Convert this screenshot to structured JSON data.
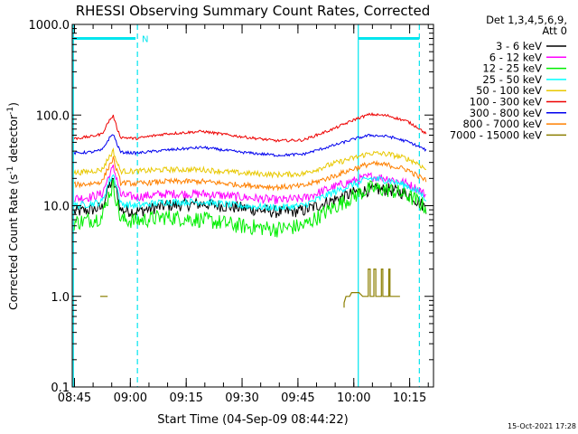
{
  "chart_data": {
    "type": "line",
    "title": "RHESSI Observing Summary Count Rates, Corrected",
    "ylabel_main": "Corrected Count Rate (s",
    "ylabel_sup1": "-1",
    "ylabel_mid": " detector",
    "ylabel_sup2": "-1",
    "ylabel_end": ")",
    "xlabel": "Start Time (04-Sep-09 08:44:22)",
    "footer": "15-Oct-2021 17:28",
    "y_scale": "log",
    "ylim": [
      0.1,
      1000
    ],
    "y_ticks": [
      {
        "value": 1000,
        "label": "1000.0"
      },
      {
        "value": 100,
        "label": "100.0"
      },
      {
        "value": 10,
        "label": "10.0"
      },
      {
        "value": 1,
        "label": "1.0"
      },
      {
        "value": 0.1,
        "label": "0.1"
      }
    ],
    "x_range_minutes": [
      0,
      97
    ],
    "x_ticks": [
      {
        "minute": 0.6,
        "label": "08:45"
      },
      {
        "minute": 15.6,
        "label": "09:00"
      },
      {
        "minute": 30.6,
        "label": "09:15"
      },
      {
        "minute": 45.6,
        "label": "09:30"
      },
      {
        "minute": 60.6,
        "label": "09:45"
      },
      {
        "minute": 75.6,
        "label": "10:00"
      },
      {
        "minute": 90.6,
        "label": "10:15"
      }
    ],
    "legend": {
      "title_line1": "Det 1,3,4,5,6,9,",
      "title_line2": "Att 0",
      "position": "right"
    },
    "markers": {
      "solid_lines_minutes": [
        0.3,
        76.8
      ],
      "dashed_lines_minutes": [
        17.5,
        93.2
      ],
      "night_bars": [
        [
          0.3,
          17.0
        ],
        [
          76.8,
          93.2
        ]
      ],
      "bar_value": 700,
      "saa_label": "N",
      "saa_label_minute": 18.2,
      "colors": {
        "line": "#00e5ee",
        "bar": "#00e5ee"
      }
    },
    "series": [
      {
        "name": "3 - 6 keV",
        "color": "#000000",
        "noise": 0.07,
        "points": [
          [
            0.5,
            8.5
          ],
          [
            5,
            9.0
          ],
          [
            8,
            9.5
          ],
          [
            10,
            17.0
          ],
          [
            11,
            18.0
          ],
          [
            12,
            14.0
          ],
          [
            13,
            9.0
          ],
          [
            17,
            8.6
          ],
          [
            25,
            10.0
          ],
          [
            35,
            10.5
          ],
          [
            45,
            9.5
          ],
          [
            55,
            8.5
          ],
          [
            62,
            8.8
          ],
          [
            70,
            11.5
          ],
          [
            76,
            14.0
          ],
          [
            80,
            15.0
          ],
          [
            85,
            15.0
          ],
          [
            90,
            13.5
          ],
          [
            93,
            11.0
          ],
          [
            95,
            9.5
          ]
        ]
      },
      {
        "name": "6 - 12 keV",
        "color": "#ff00ff",
        "noise": 0.05,
        "points": [
          [
            0.5,
            12.0
          ],
          [
            5,
            12.5
          ],
          [
            8,
            13.5
          ],
          [
            10,
            22.0
          ],
          [
            11,
            26.0
          ],
          [
            12,
            20.0
          ],
          [
            13,
            13.0
          ],
          [
            17,
            12.5
          ],
          [
            25,
            13.5
          ],
          [
            35,
            13.5
          ],
          [
            45,
            12.5
          ],
          [
            55,
            11.5
          ],
          [
            62,
            12.0
          ],
          [
            70,
            16.0
          ],
          [
            76,
            19.0
          ],
          [
            80,
            21.0
          ],
          [
            85,
            20.0
          ],
          [
            90,
            17.5
          ],
          [
            93,
            15.0
          ],
          [
            95,
            13.0
          ]
        ]
      },
      {
        "name": "12 - 25 keV",
        "color": "#00ee00",
        "noise": 0.09,
        "points": [
          [
            0.5,
            6.5
          ],
          [
            5,
            7.0
          ],
          [
            8,
            7.5
          ],
          [
            10,
            14.0
          ],
          [
            11,
            16.5
          ],
          [
            12,
            11.0
          ],
          [
            13,
            7.0
          ],
          [
            17,
            6.8
          ],
          [
            25,
            7.5
          ],
          [
            35,
            7.0
          ],
          [
            45,
            6.0
          ],
          [
            55,
            5.5
          ],
          [
            62,
            6.0
          ],
          [
            70,
            9.5
          ],
          [
            76,
            13.0
          ],
          [
            80,
            15.5
          ],
          [
            85,
            15.0
          ],
          [
            90,
            13.0
          ],
          [
            93,
            11.0
          ],
          [
            95,
            9.5
          ]
        ]
      },
      {
        "name": "25 - 50 keV",
        "color": "#00ffff",
        "noise": 0.04,
        "points": [
          [
            0.5,
            10.0
          ],
          [
            5,
            10.5
          ],
          [
            8,
            11.0
          ],
          [
            10,
            19.0
          ],
          [
            11,
            22.0
          ],
          [
            12,
            16.0
          ],
          [
            13,
            10.5
          ],
          [
            17,
            10.0
          ],
          [
            25,
            11.0
          ],
          [
            35,
            11.0
          ],
          [
            45,
            10.0
          ],
          [
            55,
            9.5
          ],
          [
            62,
            10.0
          ],
          [
            70,
            14.0
          ],
          [
            76,
            17.5
          ],
          [
            80,
            20.0
          ],
          [
            85,
            19.0
          ],
          [
            90,
            16.5
          ],
          [
            93,
            14.0
          ],
          [
            95,
            12.0
          ]
        ]
      },
      {
        "name": "50 - 100 keV",
        "color": "#e8c800",
        "noise": 0.03,
        "points": [
          [
            0.5,
            23.0
          ],
          [
            5,
            24.0
          ],
          [
            8,
            25.0
          ],
          [
            10,
            35.0
          ],
          [
            11,
            40.0
          ],
          [
            12,
            30.0
          ],
          [
            13,
            24.0
          ],
          [
            17,
            24.0
          ],
          [
            25,
            25.0
          ],
          [
            35,
            25.0
          ],
          [
            45,
            23.0
          ],
          [
            55,
            22.0
          ],
          [
            62,
            22.5
          ],
          [
            70,
            29.0
          ],
          [
            76,
            34.0
          ],
          [
            80,
            38.0
          ],
          [
            85,
            37.0
          ],
          [
            90,
            33.0
          ],
          [
            93,
            29.0
          ],
          [
            95,
            25.0
          ]
        ]
      },
      {
        "name": "100 - 300 keV",
        "color": "#ee0000",
        "noise": 0.015,
        "points": [
          [
            0.5,
            55.0
          ],
          [
            5,
            58.0
          ],
          [
            8,
            62.0
          ],
          [
            10,
            88.0
          ],
          [
            11,
            98.0
          ],
          [
            12,
            72.0
          ],
          [
            13,
            57.0
          ],
          [
            17,
            55.0
          ],
          [
            25,
            62.0
          ],
          [
            35,
            66.0
          ],
          [
            45,
            58.0
          ],
          [
            55,
            52.0
          ],
          [
            62,
            53.0
          ],
          [
            70,
            70.0
          ],
          [
            76,
            90.0
          ],
          [
            80,
            102.0
          ],
          [
            85,
            98.0
          ],
          [
            90,
            85.0
          ],
          [
            93,
            72.0
          ],
          [
            95,
            62.0
          ]
        ]
      },
      {
        "name": "300 - 800 keV",
        "color": "#0000ee",
        "noise": 0.015,
        "points": [
          [
            0.5,
            38.0
          ],
          [
            5,
            39.0
          ],
          [
            8,
            41.0
          ],
          [
            10,
            56.0
          ],
          [
            11,
            62.0
          ],
          [
            12,
            48.0
          ],
          [
            13,
            39.0
          ],
          [
            17,
            38.0
          ],
          [
            25,
            41.0
          ],
          [
            35,
            44.0
          ],
          [
            45,
            39.0
          ],
          [
            55,
            36.0
          ],
          [
            62,
            37.0
          ],
          [
            70,
            46.0
          ],
          [
            76,
            55.0
          ],
          [
            80,
            60.0
          ],
          [
            85,
            58.0
          ],
          [
            90,
            51.0
          ],
          [
            93,
            45.0
          ],
          [
            95,
            41.0
          ]
        ]
      },
      {
        "name": "800 - 7000 keV",
        "color": "#ff8000",
        "noise": 0.03,
        "points": [
          [
            0.5,
            17.0
          ],
          [
            5,
            17.5
          ],
          [
            8,
            18.5
          ],
          [
            10,
            28.0
          ],
          [
            11,
            33.0
          ],
          [
            12,
            24.0
          ],
          [
            13,
            18.0
          ],
          [
            17,
            17.5
          ],
          [
            25,
            18.5
          ],
          [
            35,
            18.5
          ],
          [
            45,
            17.0
          ],
          [
            55,
            16.0
          ],
          [
            62,
            16.5
          ],
          [
            70,
            21.0
          ],
          [
            76,
            26.0
          ],
          [
            80,
            29.0
          ],
          [
            85,
            28.0
          ],
          [
            90,
            25.0
          ],
          [
            93,
            21.0
          ],
          [
            95,
            19.0
          ]
        ]
      },
      {
        "name": "7000 - 15000 keV",
        "color": "#8b7e00",
        "noise": 0.0,
        "points": [],
        "segments": [
          [
            [
              7.5,
              1.0
            ],
            [
              9.5,
              1.0
            ]
          ],
          [
            [
              73.0,
              0.75
            ],
            [
              73.0,
              0.85
            ],
            [
              73.5,
              1.0
            ],
            [
              74.5,
              1.0
            ],
            [
              75.0,
              1.1
            ],
            [
              77.0,
              1.1
            ],
            [
              78.0,
              1.0
            ],
            [
              79.5,
              1.0
            ],
            [
              79.5,
              2.0
            ],
            [
              80.0,
              2.0
            ],
            [
              80.0,
              1.0
            ],
            [
              81.0,
              1.0
            ],
            [
              81.0,
              2.0
            ],
            [
              81.5,
              2.0
            ],
            [
              81.5,
              1.0
            ],
            [
              83.0,
              1.0
            ],
            [
              83.0,
              2.0
            ],
            [
              83.4,
              2.0
            ],
            [
              83.4,
              1.0
            ],
            [
              85.0,
              1.0
            ],
            [
              85.0,
              2.0
            ],
            [
              85.3,
              2.0
            ],
            [
              85.3,
              1.0
            ],
            [
              88.0,
              1.0
            ]
          ]
        ]
      }
    ]
  }
}
